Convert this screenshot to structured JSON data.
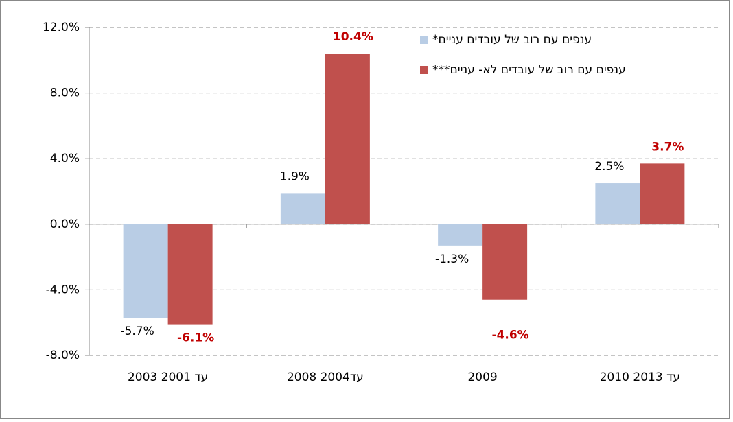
{
  "chart_data": {
    "type": "bar",
    "categories": [
      "2003 עד 2001",
      "2008 2004עד",
      "2009",
      "2010 עד 2013"
    ],
    "series": [
      {
        "name": "ענפים עם רוב של עובדים עניים*",
        "color": "#b9cde5",
        "label_color": "#000000",
        "label_bold": false,
        "values": [
          -5.7,
          1.9,
          -1.3,
          2.5
        ],
        "value_labels": [
          "-5.7%",
          "1.9%",
          "-1.3%",
          "2.5%"
        ]
      },
      {
        "name": "ענפים עם רוב של עובדים לא- עניים***",
        "color": "#c0504d",
        "label_color": "#c00000",
        "label_bold": true,
        "values": [
          -6.1,
          10.4,
          -4.6,
          3.7
        ],
        "value_labels": [
          "-6.1%",
          "10.4%",
          "-4.6%",
          "3.7%"
        ]
      }
    ],
    "ylim": [
      -8,
      12
    ],
    "yticks": [
      {
        "value": -8,
        "label": "-8.0%"
      },
      {
        "value": -4,
        "label": "-4.0%"
      },
      {
        "value": 0,
        "label": "0.0%"
      },
      {
        "value": 4,
        "label": "4.0%"
      },
      {
        "value": 8,
        "label": "8.0%"
      },
      {
        "value": 12,
        "label": "12.0%"
      }
    ],
    "grid": true,
    "legend": "top-right"
  }
}
